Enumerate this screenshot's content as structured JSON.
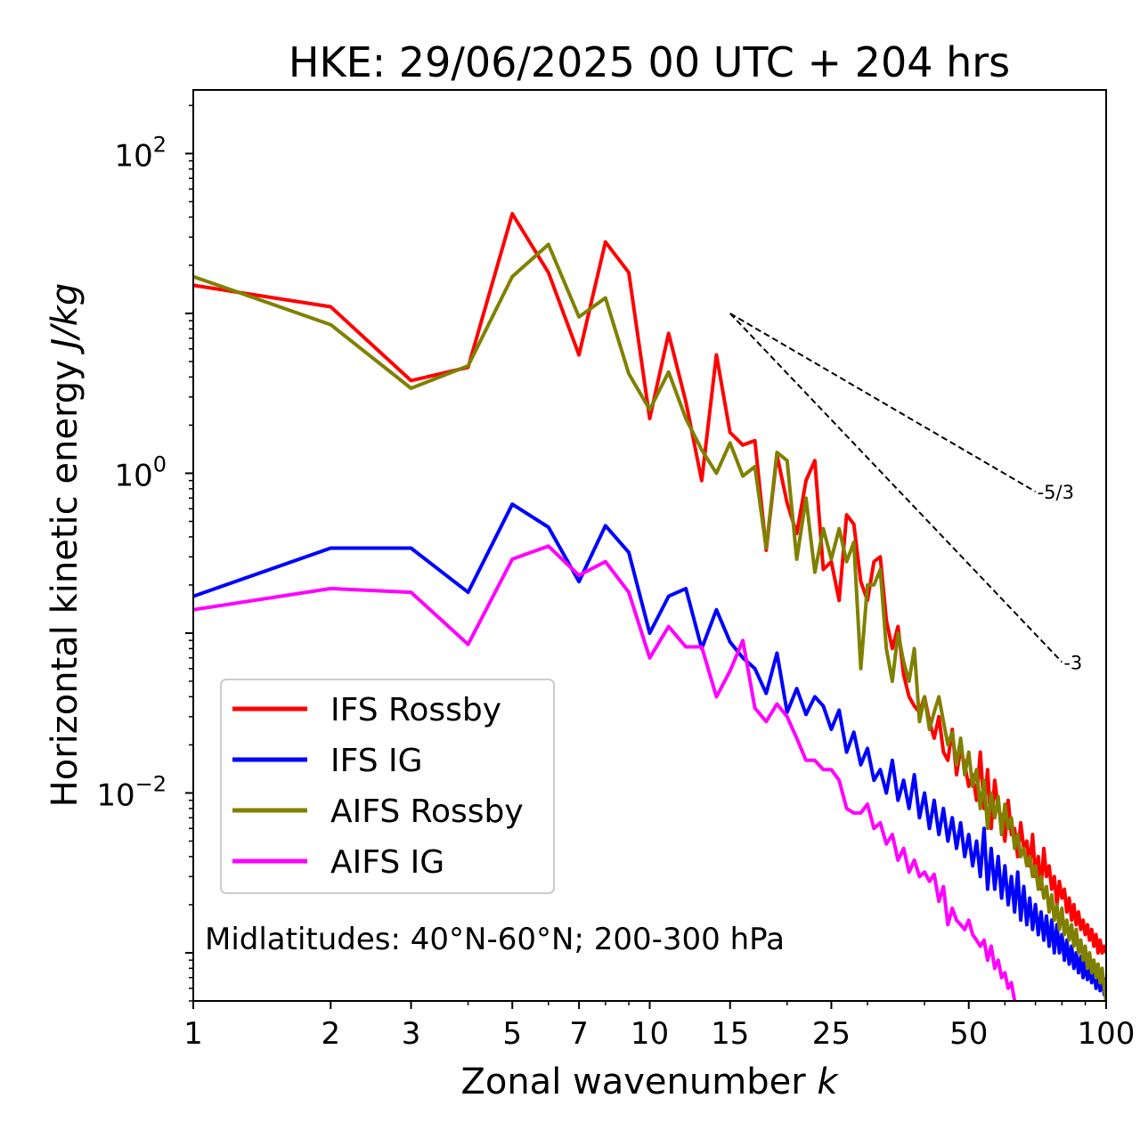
{
  "chart_data": {
    "type": "line",
    "title": "HKE: 29/06/2025 00 UTC + 204 hrs",
    "xlabel_main": "Zonal wavenumber ",
    "xlabel_var": "k",
    "ylabel_main": "Horizontal kinetic energy ",
    "ylabel_unit": "J/kg",
    "xscale": "log",
    "yscale": "log",
    "xlim": [
      1,
      100
    ],
    "ylim": [
      0.0005,
      250
    ],
    "xticks": [
      {
        "value": 1,
        "label": "1"
      },
      {
        "value": 2,
        "label": "2"
      },
      {
        "value": 3,
        "label": "3"
      },
      {
        "value": 5,
        "label": "5"
      },
      {
        "value": 7,
        "label": "7"
      },
      {
        "value": 10,
        "label": "10"
      },
      {
        "value": 15,
        "label": "15"
      },
      {
        "value": 25,
        "label": "25"
      },
      {
        "value": 50,
        "label": "50"
      },
      {
        "value": 100,
        "label": "100"
      }
    ],
    "yticks": [
      {
        "value": 100,
        "base": "10",
        "exp": "2"
      },
      {
        "value": 1,
        "base": "10",
        "exp": "0"
      },
      {
        "value": 0.01,
        "base": "10",
        "exp": "−2"
      }
    ],
    "annotation": "Midlatitudes: 40°N-60°N; 200-300 hPa",
    "legend_position": "lower-left",
    "reference_slopes": [
      {
        "label": "-5/3",
        "slope": -1.6667,
        "x0": 15,
        "y0": 10,
        "x1": 70
      },
      {
        "label": "-3",
        "slope": -3,
        "x0": 15,
        "y0": 10,
        "x1": 80
      }
    ],
    "series": [
      {
        "name": "IFS Rossby",
        "color": "#ff0000",
        "x": [
          1,
          2,
          3,
          4,
          5,
          6,
          7,
          8,
          9,
          10,
          11,
          12,
          13,
          14,
          15,
          16,
          17,
          18,
          19,
          20,
          21,
          22,
          23,
          24,
          25,
          26,
          27,
          28,
          29,
          30,
          31,
          32,
          33,
          34,
          35,
          36,
          37,
          38,
          39,
          40,
          41,
          42,
          43,
          44,
          45,
          46,
          47,
          48,
          49,
          50,
          51,
          52,
          53,
          54,
          55,
          56,
          57,
          58,
          59,
          60,
          61,
          62,
          63,
          64,
          65,
          66,
          67,
          68,
          69,
          70,
          71,
          72,
          73,
          74,
          75,
          76,
          77,
          78,
          79,
          80,
          81,
          82,
          83,
          84,
          85,
          86,
          87,
          88,
          89,
          90,
          91,
          92,
          93,
          94,
          95,
          96,
          97,
          98,
          99,
          100
        ],
        "y": [
          15.0,
          11.0,
          3.8,
          4.6,
          42.0,
          18.0,
          5.5,
          28.0,
          18.0,
          2.2,
          7.5,
          2.8,
          0.9,
          5.5,
          1.8,
          1.5,
          1.6,
          0.33,
          1.3,
          0.65,
          0.42,
          0.9,
          1.2,
          0.25,
          0.28,
          0.16,
          0.55,
          0.48,
          0.21,
          0.16,
          0.28,
          0.3,
          0.12,
          0.08,
          0.11,
          0.055,
          0.04,
          0.035,
          0.032,
          0.04,
          0.028,
          0.022,
          0.03,
          0.018,
          0.016,
          0.025,
          0.013,
          0.019,
          0.015,
          0.011,
          0.013,
          0.009,
          0.018,
          0.008,
          0.014,
          0.006,
          0.012,
          0.008,
          0.007,
          0.005,
          0.009,
          0.0055,
          0.006,
          0.004,
          0.0065,
          0.0045,
          0.005,
          0.0035,
          0.0055,
          0.003,
          0.004,
          0.0025,
          0.0045,
          0.003,
          0.0035,
          0.0025,
          0.003,
          0.002,
          0.0028,
          0.0022,
          0.0025,
          0.0018,
          0.0022,
          0.0016,
          0.002,
          0.0015,
          0.0018,
          0.0014,
          0.0016,
          0.0013,
          0.0015,
          0.0012,
          0.0014,
          0.0011,
          0.0013,
          0.001,
          0.0012,
          0.001,
          0.0011,
          0.001
        ]
      },
      {
        "name": "IFS IG",
        "color": "#0000ff",
        "x": [
          1,
          2,
          3,
          4,
          5,
          6,
          7,
          8,
          9,
          10,
          11,
          12,
          13,
          14,
          15,
          16,
          17,
          18,
          19,
          20,
          21,
          22,
          23,
          24,
          25,
          26,
          27,
          28,
          29,
          30,
          31,
          32,
          33,
          34,
          35,
          36,
          37,
          38,
          39,
          40,
          41,
          42,
          43,
          44,
          45,
          46,
          47,
          48,
          49,
          50,
          51,
          52,
          53,
          54,
          55,
          56,
          57,
          58,
          59,
          60,
          61,
          62,
          63,
          64,
          65,
          66,
          67,
          68,
          69,
          70,
          71,
          72,
          73,
          74,
          75,
          76,
          77,
          78,
          79,
          80,
          81,
          82,
          83,
          84,
          85,
          86,
          87,
          88,
          89,
          90,
          91,
          92,
          93,
          94,
          95,
          96,
          97,
          98,
          99,
          100
        ],
        "y": [
          0.17,
          0.34,
          0.34,
          0.18,
          0.64,
          0.46,
          0.21,
          0.47,
          0.32,
          0.1,
          0.17,
          0.19,
          0.08,
          0.14,
          0.088,
          0.07,
          0.06,
          0.042,
          0.075,
          0.032,
          0.045,
          0.031,
          0.04,
          0.035,
          0.025,
          0.033,
          0.018,
          0.024,
          0.015,
          0.019,
          0.012,
          0.014,
          0.01,
          0.016,
          0.009,
          0.012,
          0.008,
          0.013,
          0.007,
          0.01,
          0.006,
          0.009,
          0.0055,
          0.008,
          0.005,
          0.007,
          0.0045,
          0.0065,
          0.004,
          0.0055,
          0.0035,
          0.005,
          0.003,
          0.006,
          0.0025,
          0.0045,
          0.0025,
          0.004,
          0.0022,
          0.0035,
          0.002,
          0.003,
          0.0018,
          0.0032,
          0.0016,
          0.0026,
          0.0015,
          0.0022,
          0.0014,
          0.002,
          0.0013,
          0.0018,
          0.0012,
          0.0017,
          0.0011,
          0.0016,
          0.001,
          0.0015,
          0.001,
          0.0013,
          0.0009,
          0.0012,
          0.00085,
          0.0011,
          0.0008,
          0.001,
          0.00075,
          0.00095,
          0.0007,
          0.0009,
          0.00068,
          0.00085,
          0.00065,
          0.0008,
          0.0006,
          0.00078,
          0.00058,
          0.00075,
          0.00055,
          0.0007
        ]
      },
      {
        "name": "AIFS Rossby",
        "color": "#808000",
        "x": [
          1,
          2,
          3,
          4,
          5,
          6,
          7,
          8,
          9,
          10,
          11,
          12,
          13,
          14,
          15,
          16,
          17,
          18,
          19,
          20,
          21,
          22,
          23,
          24,
          25,
          26,
          27,
          28,
          29,
          30,
          31,
          32,
          33,
          34,
          35,
          36,
          37,
          38,
          39,
          40,
          41,
          42,
          43,
          44,
          45,
          46,
          47,
          48,
          49,
          50,
          51,
          52,
          53,
          54,
          55,
          56,
          57,
          58,
          59,
          60,
          61,
          62,
          63,
          64,
          65,
          66,
          67,
          68,
          69,
          70,
          71,
          72,
          73,
          74,
          75,
          76,
          77,
          78,
          79,
          80,
          81,
          82,
          83,
          84,
          85,
          86,
          87,
          88,
          89,
          90,
          91,
          92,
          93,
          94,
          95,
          96,
          97,
          98,
          99,
          100
        ],
        "y": [
          17.0,
          8.5,
          3.4,
          4.7,
          17.0,
          27.0,
          9.5,
          12.5,
          4.2,
          2.5,
          4.3,
          2.2,
          1.4,
          1.0,
          1.55,
          0.96,
          1.1,
          0.34,
          1.35,
          1.2,
          0.29,
          0.7,
          0.24,
          0.45,
          0.29,
          0.45,
          0.28,
          0.37,
          0.06,
          0.2,
          0.2,
          0.25,
          0.08,
          0.05,
          0.1,
          0.066,
          0.05,
          0.08,
          0.028,
          0.04,
          0.025,
          0.032,
          0.04,
          0.028,
          0.02,
          0.024,
          0.015,
          0.022,
          0.013,
          0.018,
          0.011,
          0.014,
          0.008,
          0.012,
          0.006,
          0.01,
          0.007,
          0.0095,
          0.0055,
          0.0085,
          0.006,
          0.007,
          0.0045,
          0.0055,
          0.004,
          0.0045,
          0.0035,
          0.004,
          0.003,
          0.0035,
          0.0025,
          0.003,
          0.0022,
          0.0026,
          0.0018,
          0.0023,
          0.0016,
          0.002,
          0.0014,
          0.0019,
          0.0013,
          0.0016,
          0.0012,
          0.0015,
          0.0011,
          0.0014,
          0.001,
          0.0012,
          0.0009,
          0.0011,
          0.0008,
          0.001,
          0.00075,
          0.0009,
          0.0007,
          0.00085,
          0.00065,
          0.0008,
          0.0006,
          0.0005
        ]
      },
      {
        "name": "AIFS IG",
        "color": "#ff00ff",
        "x": [
          1,
          2,
          3,
          4,
          5,
          6,
          7,
          8,
          9,
          10,
          11,
          12,
          13,
          14,
          15,
          16,
          17,
          18,
          19,
          20,
          21,
          22,
          23,
          24,
          25,
          26,
          27,
          28,
          29,
          30,
          31,
          32,
          33,
          34,
          35,
          36,
          37,
          38,
          39,
          40,
          41,
          42,
          43,
          44,
          45,
          46,
          47,
          48,
          49,
          50,
          51,
          52,
          53,
          54,
          55,
          56,
          57,
          58,
          59,
          60,
          61,
          62,
          63
        ],
        "y": [
          0.14,
          0.19,
          0.18,
          0.085,
          0.29,
          0.35,
          0.23,
          0.28,
          0.18,
          0.07,
          0.11,
          0.082,
          0.082,
          0.04,
          0.058,
          0.09,
          0.034,
          0.028,
          0.036,
          0.03,
          0.022,
          0.016,
          0.016,
          0.014,
          0.014,
          0.012,
          0.008,
          0.0075,
          0.0075,
          0.0085,
          0.006,
          0.0065,
          0.0048,
          0.0055,
          0.0038,
          0.0045,
          0.0032,
          0.0038,
          0.003,
          0.0032,
          0.0028,
          0.0031,
          0.0021,
          0.0026,
          0.0015,
          0.0019,
          0.0016,
          0.0015,
          0.0014,
          0.0016,
          0.0013,
          0.0012,
          0.0011,
          0.0012,
          0.0009,
          0.0011,
          0.0008,
          0.0009,
          0.0007,
          0.00075,
          0.0006,
          0.00065,
          0.0005
        ]
      }
    ]
  }
}
